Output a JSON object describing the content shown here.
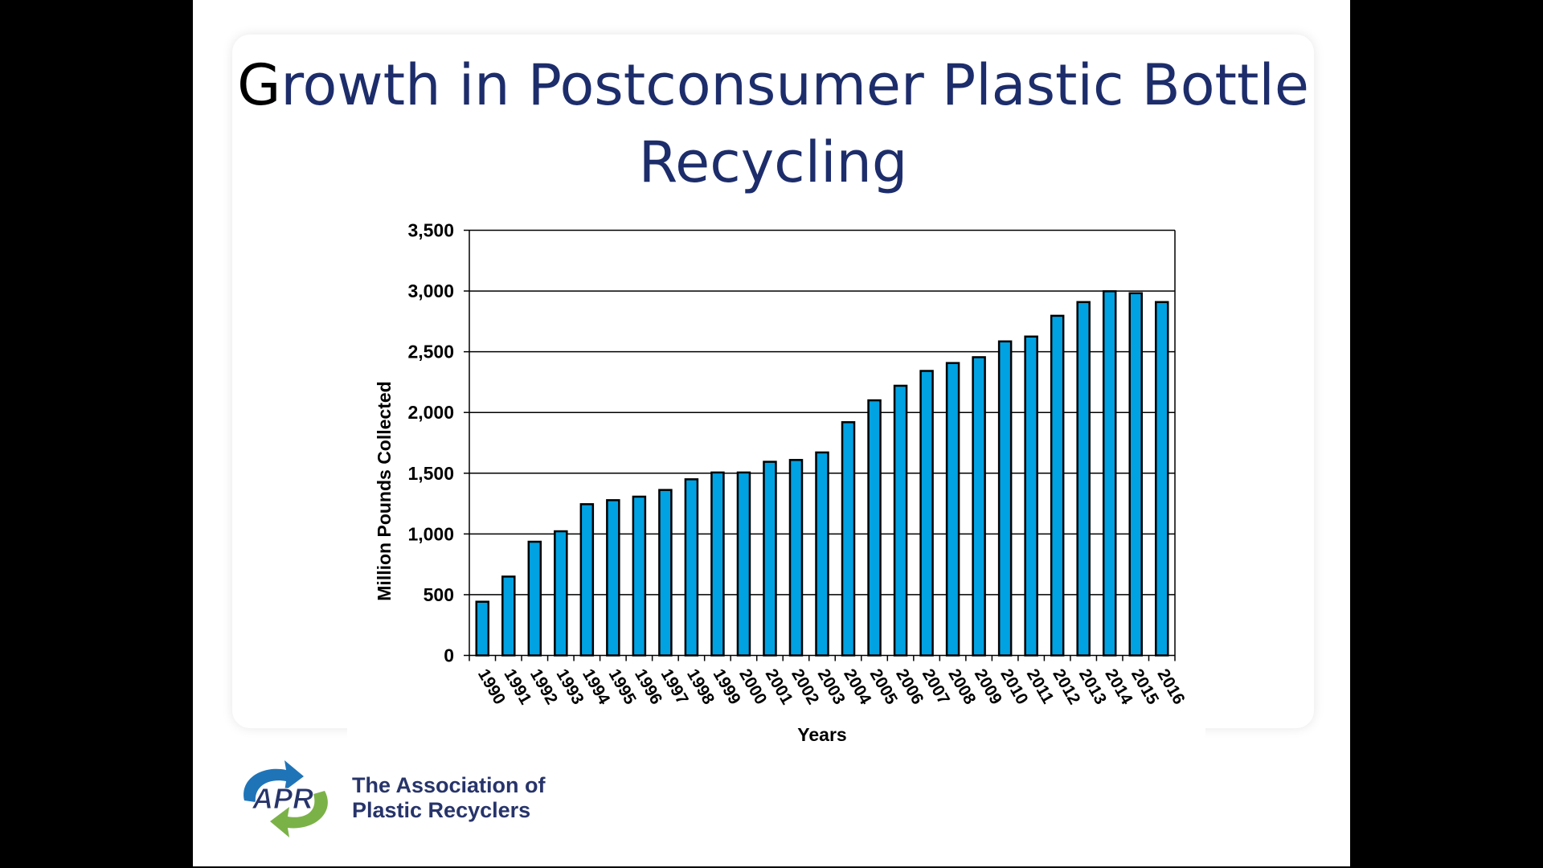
{
  "slide": {
    "title_line1": "Growth in Postconsumer Plastic Bottle",
    "title_line2": "Recycling",
    "logo_text": "APR",
    "org_line1": "The Association of",
    "org_line2": "Plastic Recyclers"
  },
  "colors": {
    "bar": "#00a2e2",
    "title": "#1d2d6b",
    "logo_blue": "#1f74b8",
    "logo_green": "#7bb247"
  },
  "chart_data": {
    "type": "bar",
    "title": "",
    "xlabel": "Years",
    "ylabel": "Million Pounds Collected",
    "ylim": [
      0,
      3500
    ],
    "yticks": [
      "0",
      "500",
      "1,000",
      "1,500",
      "2,000",
      "2,500",
      "3,000",
      "3,500"
    ],
    "grid": true,
    "categories": [
      "1990",
      "1991",
      "1992",
      "1993",
      "1994",
      "1995",
      "1996",
      "1997",
      "1998",
      "1999",
      "2000",
      "2001",
      "2002",
      "2003",
      "2004",
      "2005",
      "2006",
      "2007",
      "2008",
      "2009",
      "2010",
      "2011",
      "2012",
      "2013",
      "2014",
      "2015",
      "2016"
    ],
    "values": [
      442,
      649,
      936,
      1022,
      1245,
      1278,
      1307,
      1362,
      1450,
      1506,
      1506,
      1594,
      1609,
      1671,
      1920,
      2100,
      2220,
      2342,
      2407,
      2455,
      2585,
      2625,
      2796,
      2909,
      2998,
      2982,
      2909
    ]
  }
}
